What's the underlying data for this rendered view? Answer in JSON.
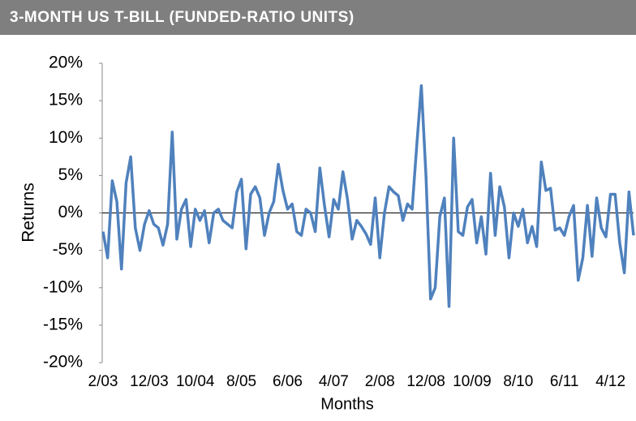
{
  "chart_data": {
    "type": "line",
    "title": "3-MONTH US T-BILL (FUNDED-RATIO UNITS)",
    "x_label": "Months",
    "y_label": "Returns",
    "categories": [
      "2/03",
      null,
      null,
      null,
      null,
      null,
      null,
      null,
      null,
      null,
      "12/03",
      null,
      null,
      null,
      null,
      null,
      null,
      null,
      null,
      null,
      "10/04",
      null,
      null,
      null,
      null,
      null,
      null,
      null,
      null,
      null,
      "8/05",
      null,
      null,
      null,
      null,
      null,
      null,
      null,
      null,
      null,
      "6/06",
      null,
      null,
      null,
      null,
      null,
      null,
      null,
      null,
      null,
      "4/07",
      null,
      null,
      null,
      null,
      null,
      null,
      null,
      null,
      null,
      "2/08",
      null,
      null,
      null,
      null,
      null,
      null,
      null,
      null,
      null,
      "12/08",
      null,
      null,
      null,
      null,
      null,
      null,
      null,
      null,
      null,
      "10/09",
      null,
      null,
      null,
      null,
      null,
      null,
      null,
      null,
      null,
      "8/10",
      null,
      null,
      null,
      null,
      null,
      null,
      null,
      null,
      null,
      "6/11",
      null,
      null,
      null,
      null,
      null,
      null,
      null,
      null,
      null,
      "4/12",
      null,
      null,
      null,
      null,
      null
    ],
    "series": [
      {
        "color": "#4f81bd",
        "values": [
          -2.5,
          -6,
          4.3,
          1.5,
          -7.5,
          4,
          7.5,
          -2,
          -5,
          -1.5,
          0.3,
          -1.5,
          -2,
          -4.3,
          -1.5,
          10.8,
          -3.5,
          0.5,
          1.8,
          -4.5,
          0.5,
          -1,
          0.3,
          -4,
          0,
          0.5,
          -1,
          -1.5,
          -2,
          2.8,
          4.5,
          -4.8,
          2.5,
          3.5,
          2,
          -3,
          0,
          1.5,
          6.5,
          3,
          0.5,
          1.2,
          -2.5,
          -3,
          0.5,
          0,
          -2.5,
          6,
          1,
          -3.2,
          1.8,
          0.5,
          5.5,
          1.8,
          -3.5,
          -1,
          -1.8,
          -2.8,
          -4.2,
          2,
          -6,
          0,
          3.5,
          2.8,
          2.3,
          -1,
          1.2,
          0.5,
          9,
          17,
          5,
          -11.5,
          -10,
          -0.5,
          2,
          -12.5,
          10,
          -2.5,
          -3,
          0.8,
          1.8,
          -4,
          -0.5,
          -5.5,
          5.3,
          -3,
          3.5,
          0.8,
          -6,
          0,
          -1.8,
          0.5,
          -4,
          -1.8,
          -4.5,
          6.8,
          3,
          3.3,
          -2.3,
          -2,
          -3,
          -0.5,
          1,
          -9,
          -6,
          1,
          -5.8,
          2,
          -2,
          -3.2,
          2.5,
          2.5,
          -4,
          -8,
          2.8,
          -3
        ]
      }
    ],
    "ylim": [
      -20,
      20
    ],
    "yticks": [
      {
        "value": 20,
        "label": "20%"
      },
      {
        "value": 15,
        "label": "15%"
      },
      {
        "value": 10,
        "label": "10%"
      },
      {
        "value": 5,
        "label": "5%"
      },
      {
        "value": 0,
        "label": "0%"
      },
      {
        "value": -5,
        "label": "-5%"
      },
      {
        "value": -10,
        "label": "-10%"
      },
      {
        "value": -15,
        "label": "-15%"
      },
      {
        "value": -20,
        "label": "-20%"
      }
    ],
    "zero_line": true
  }
}
